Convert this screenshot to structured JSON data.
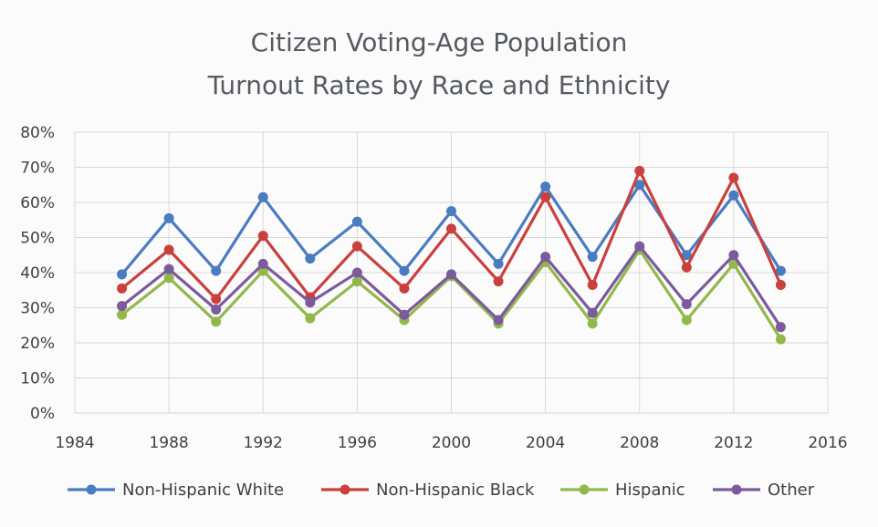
{
  "chart_data": {
    "type": "line",
    "title": [
      "Citizen Voting-Age Population",
      "Turnout Rates by Race and Ethnicity"
    ],
    "xlabel": "",
    "ylabel": "",
    "xlim": [
      1984,
      2016
    ],
    "ylim": [
      0,
      80
    ],
    "x_ticks": [
      1984,
      1988,
      1992,
      1996,
      2000,
      2004,
      2008,
      2012,
      2016
    ],
    "y_ticks": [
      0,
      10,
      20,
      30,
      40,
      50,
      60,
      70,
      80
    ],
    "y_tick_labels": [
      "0%",
      "10%",
      "20%",
      "30%",
      "40%",
      "50%",
      "60%",
      "70%",
      "80%"
    ],
    "grid": true,
    "legend_position": "bottom",
    "x": [
      1986,
      1988,
      1990,
      1992,
      1994,
      1996,
      1998,
      2000,
      2002,
      2004,
      2006,
      2008,
      2010,
      2012,
      2014
    ],
    "series": [
      {
        "name": "Non-Hispanic White",
        "color": "#4a7cc1",
        "values": [
          39.5,
          55.5,
          40.5,
          61.5,
          44.0,
          54.5,
          40.5,
          57.5,
          42.5,
          64.5,
          44.5,
          65.0,
          45.0,
          62.0,
          40.5
        ]
      },
      {
        "name": "Non-Hispanic Black",
        "color": "#c9403d",
        "values": [
          35.5,
          46.5,
          32.5,
          50.5,
          33.0,
          47.5,
          35.5,
          52.5,
          37.5,
          61.5,
          36.5,
          69.0,
          41.5,
          67.0,
          36.5
        ]
      },
      {
        "name": "Hispanic",
        "color": "#92b84b",
        "values": [
          28.0,
          38.5,
          26.0,
          40.5,
          27.0,
          37.5,
          26.5,
          39.0,
          25.5,
          43.0,
          25.5,
          46.5,
          26.5,
          42.5,
          21.0
        ]
      },
      {
        "name": "Other",
        "color": "#7c5a9e",
        "values": [
          30.5,
          41.0,
          29.5,
          42.5,
          31.5,
          40.0,
          28.0,
          39.5,
          26.5,
          44.5,
          28.5,
          47.5,
          31.0,
          45.0,
          24.5
        ]
      }
    ]
  }
}
